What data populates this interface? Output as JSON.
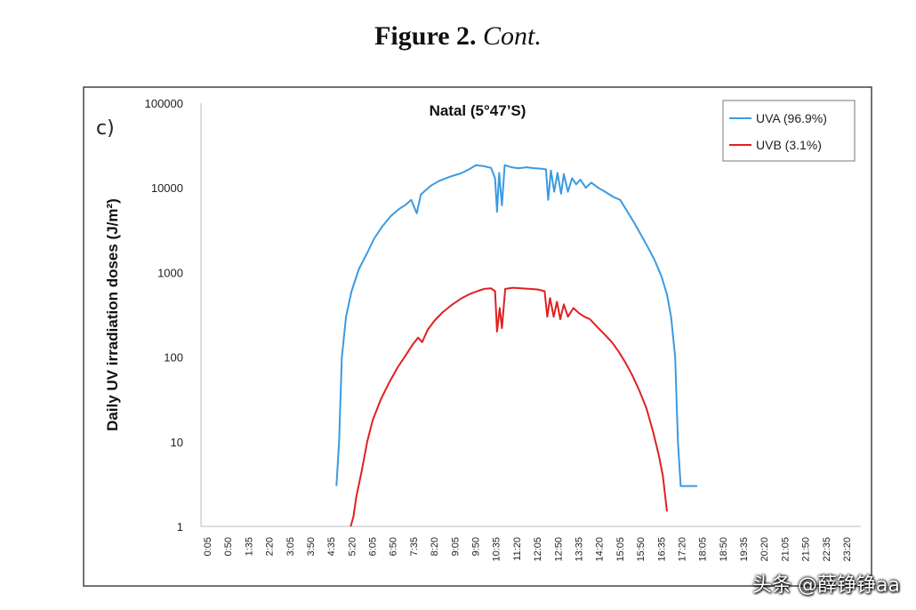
{
  "caption": {
    "bold": "Figure 2.",
    "italic": "Cont."
  },
  "panel_label": "c)",
  "watermark": "头条 @薛铮铮aa",
  "chart_data": {
    "type": "line",
    "title": "Natal (5°47’S)",
    "xlabel": "",
    "ylabel": "Daily UV irradiation doses (J/m²)",
    "yscale": "log",
    "ylim": [
      1,
      100000
    ],
    "y_ticks": [
      1,
      10,
      100,
      1000,
      10000,
      100000
    ],
    "y_tick_labels": [
      "1",
      "10",
      "100",
      "1000",
      "10000",
      "100000"
    ],
    "x_ticks": [
      "0:05",
      "0:50",
      "1:35",
      "2:20",
      "3:05",
      "3:50",
      "4:35",
      "5:20",
      "6:05",
      "6:50",
      "7:35",
      "8:20",
      "9:05",
      "9:50",
      "10:35",
      "11:20",
      "12:05",
      "12:50",
      "13:35",
      "14:20",
      "15:05",
      "15:50",
      "16:35",
      "17:20",
      "18:05",
      "18:50",
      "19:35",
      "20:20",
      "21:05",
      "21:50",
      "22:35",
      "23:20"
    ],
    "x_range_hours": [
      0.083,
      23.333
    ],
    "legend_position": "top-right",
    "grid": false,
    "series": [
      {
        "name": "UVA (96.9%)",
        "color": "#3b9ae1",
        "points": [
          [
            4.78,
            3.0
          ],
          [
            4.88,
            10
          ],
          [
            4.98,
            100
          ],
          [
            5.13,
            300
          ],
          [
            5.33,
            600
          ],
          [
            5.6,
            1100
          ],
          [
            5.9,
            1700
          ],
          [
            6.15,
            2500
          ],
          [
            6.45,
            3500
          ],
          [
            6.75,
            4600
          ],
          [
            7.05,
            5600
          ],
          [
            7.3,
            6300
          ],
          [
            7.5,
            7200
          ],
          [
            7.7,
            5000
          ],
          [
            7.85,
            8300
          ],
          [
            8.0,
            9200
          ],
          [
            8.2,
            10500
          ],
          [
            8.5,
            12000
          ],
          [
            8.9,
            13500
          ],
          [
            9.3,
            14800
          ],
          [
            9.6,
            16500
          ],
          [
            9.85,
            18500
          ],
          [
            10.15,
            18000
          ],
          [
            10.4,
            17200
          ],
          [
            10.55,
            13000
          ],
          [
            10.62,
            5200
          ],
          [
            10.7,
            15000
          ],
          [
            10.8,
            6200
          ],
          [
            10.9,
            18500
          ],
          [
            11.15,
            17500
          ],
          [
            11.4,
            17000
          ],
          [
            11.7,
            17500
          ],
          [
            12.0,
            17000
          ],
          [
            12.25,
            16800
          ],
          [
            12.4,
            16500
          ],
          [
            12.48,
            7200
          ],
          [
            12.58,
            16000
          ],
          [
            12.7,
            9000
          ],
          [
            12.82,
            15000
          ],
          [
            12.95,
            8500
          ],
          [
            13.05,
            14500
          ],
          [
            13.2,
            9000
          ],
          [
            13.35,
            13000
          ],
          [
            13.5,
            11000
          ],
          [
            13.65,
            12500
          ],
          [
            13.85,
            10000
          ],
          [
            14.05,
            11500
          ],
          [
            14.3,
            10000
          ],
          [
            14.55,
            9000
          ],
          [
            14.85,
            7800
          ],
          [
            15.1,
            7200
          ],
          [
            15.35,
            5300
          ],
          [
            15.6,
            3900
          ],
          [
            15.85,
            2800
          ],
          [
            16.1,
            2000
          ],
          [
            16.35,
            1400
          ],
          [
            16.6,
            900
          ],
          [
            16.8,
            550
          ],
          [
            16.95,
            300
          ],
          [
            17.1,
            100
          ],
          [
            17.2,
            10
          ],
          [
            17.3,
            3.0
          ],
          [
            17.9,
            3.0
          ]
        ]
      },
      {
        "name": "UVB (3.1%)",
        "color": "#e02020",
        "points": [
          [
            5.3,
            1.0
          ],
          [
            5.4,
            1.3
          ],
          [
            5.5,
            2.2
          ],
          [
            5.7,
            4.5
          ],
          [
            5.9,
            10
          ],
          [
            6.1,
            18
          ],
          [
            6.4,
            32
          ],
          [
            6.7,
            50
          ],
          [
            7.0,
            75
          ],
          [
            7.3,
            105
          ],
          [
            7.55,
            140
          ],
          [
            7.75,
            170
          ],
          [
            7.9,
            150
          ],
          [
            8.1,
            210
          ],
          [
            8.35,
            270
          ],
          [
            8.65,
            340
          ],
          [
            9.0,
            420
          ],
          [
            9.35,
            500
          ],
          [
            9.65,
            560
          ],
          [
            9.9,
            600
          ],
          [
            10.15,
            640
          ],
          [
            10.4,
            650
          ],
          [
            10.55,
            600
          ],
          [
            10.62,
            200
          ],
          [
            10.72,
            380
          ],
          [
            10.8,
            220
          ],
          [
            10.92,
            640
          ],
          [
            11.2,
            660
          ],
          [
            11.5,
            650
          ],
          [
            11.8,
            640
          ],
          [
            12.1,
            630
          ],
          [
            12.35,
            600
          ],
          [
            12.45,
            300
          ],
          [
            12.55,
            500
          ],
          [
            12.68,
            300
          ],
          [
            12.8,
            450
          ],
          [
            12.92,
            280
          ],
          [
            13.05,
            420
          ],
          [
            13.2,
            300
          ],
          [
            13.4,
            380
          ],
          [
            13.6,
            330
          ],
          [
            13.8,
            300
          ],
          [
            14.0,
            280
          ],
          [
            14.25,
            230
          ],
          [
            14.5,
            190
          ],
          [
            14.8,
            150
          ],
          [
            15.05,
            115
          ],
          [
            15.3,
            85
          ],
          [
            15.55,
            60
          ],
          [
            15.8,
            40
          ],
          [
            16.05,
            25
          ],
          [
            16.3,
            13
          ],
          [
            16.5,
            7
          ],
          [
            16.65,
            4
          ],
          [
            16.8,
            1.5
          ]
        ]
      }
    ]
  }
}
